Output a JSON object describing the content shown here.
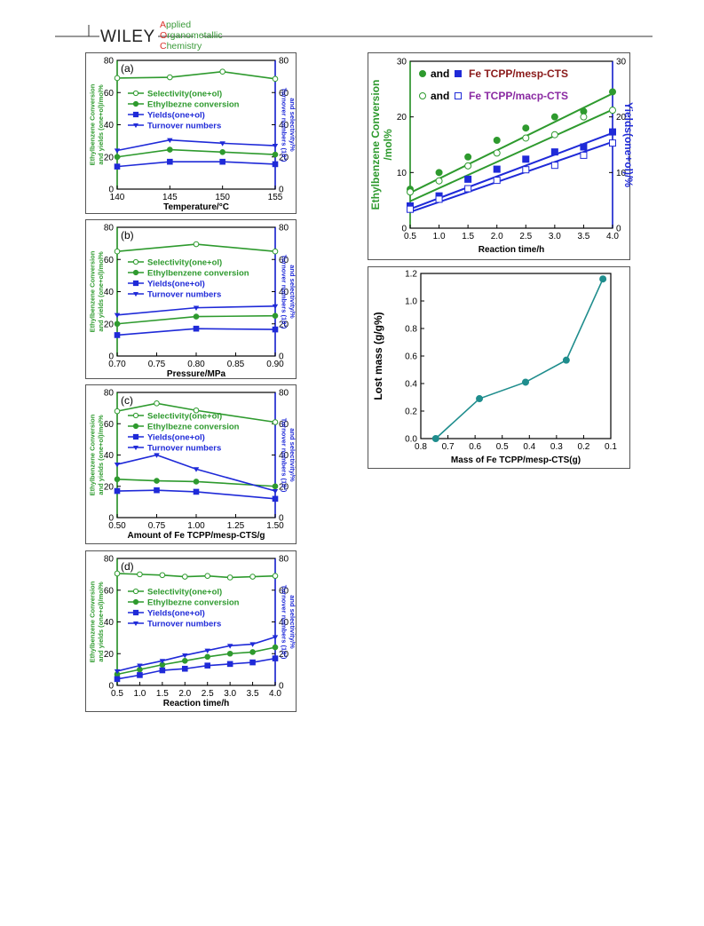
{
  "header": {
    "publisher": "WILEY",
    "journal_lines": [
      "Applied",
      "Organometallic",
      "Chemistry"
    ],
    "journal_initials": [
      "A",
      "O",
      "C"
    ],
    "journal_rest": [
      "pplied",
      "rganometallic",
      "hemistry"
    ],
    "colors": {
      "initial": "#d9322b",
      "rest": "#3a9a3a"
    }
  },
  "colors": {
    "green": "#2e9a2e",
    "blue": "#1f2ad8",
    "teal": "#1f8d8d",
    "maroon": "#8a1a1a",
    "purple": "#8a2aa2"
  },
  "chart_data": [
    {
      "id": "a",
      "type": "line",
      "panel_label": "(a)",
      "xlabel": "Temperature/°C",
      "ylabel_left": [
        "Ethylbenzene Conversion",
        "and yields (one+ol)/mol%"
      ],
      "ylabel_right": [
        "Turnover numbers (10³)",
        "and selectivity/%"
      ],
      "xlim": [
        140,
        155
      ],
      "ylim": [
        0,
        80
      ],
      "y2lim": [
        0,
        80
      ],
      "xticks": [
        140,
        145,
        150,
        155
      ],
      "xtick_labels": [
        "140",
        "145",
        "150",
        "155"
      ],
      "yticks": [
        0,
        20,
        40,
        60,
        80
      ],
      "ytick_labels": [
        "0",
        "20",
        "40",
        "60",
        "80"
      ],
      "y2ticks": [
        0,
        20,
        40,
        60,
        80
      ],
      "y2tick_labels": [
        "0",
        "20",
        "40",
        "60",
        "80"
      ],
      "x": [
        140,
        145,
        150,
        155
      ],
      "series": [
        {
          "name": "Selectivity(one+ol)",
          "values": [
            69,
            69.5,
            73,
            68.5
          ],
          "color": "#2e9a2e",
          "marker": "open-circle"
        },
        {
          "name": "Ethylbezne conversion",
          "values": [
            20,
            24.5,
            23,
            21.5
          ],
          "color": "#2e9a2e",
          "marker": "circle"
        },
        {
          "name": "Yields(one+ol)",
          "values": [
            14,
            17,
            17,
            15.5
          ],
          "color": "#1f2ad8",
          "marker": "square"
        },
        {
          "name": "Turnover numbers",
          "values": [
            24,
            30.5,
            28.5,
            27
          ],
          "color": "#1f2ad8",
          "marker": "down-triangle"
        }
      ]
    },
    {
      "id": "b",
      "type": "line",
      "panel_label": "(b)",
      "xlabel": "Pressure/MPa",
      "ylabel_left": [
        "Ethylbenzene Conversion",
        "and yields (one+ol)/mol%"
      ],
      "ylabel_right": [
        "Turnover numbers (10³)",
        "and selectivity/%"
      ],
      "xlim": [
        0.7,
        0.9
      ],
      "ylim": [
        0,
        80
      ],
      "y2lim": [
        0,
        80
      ],
      "xticks": [
        0.7,
        0.75,
        0.8,
        0.85,
        0.9
      ],
      "xtick_labels": [
        "0.70",
        "0.75",
        "0.80",
        "0.85",
        "0.90"
      ],
      "yticks": [
        0,
        20,
        40,
        60,
        80
      ],
      "ytick_labels": [
        "0",
        "20",
        "40",
        "60",
        "80"
      ],
      "y2ticks": [
        0,
        20,
        40,
        60,
        80
      ],
      "y2tick_labels": [
        "0",
        "20",
        "40",
        "60",
        "80"
      ],
      "x": [
        0.7,
        0.8,
        0.9
      ],
      "series": [
        {
          "name": "Selectivity(one+ol)",
          "values": [
            65,
            69.5,
            65
          ],
          "color": "#2e9a2e",
          "marker": "open-circle"
        },
        {
          "name": "Ethylbenzene conversion",
          "values": [
            20,
            24.5,
            25
          ],
          "color": "#2e9a2e",
          "marker": "circle"
        },
        {
          "name": "Yields(one+ol)",
          "values": [
            13,
            17,
            16.5
          ],
          "color": "#1f2ad8",
          "marker": "square"
        },
        {
          "name": "Turnover numbers",
          "values": [
            25.5,
            30,
            31
          ],
          "color": "#1f2ad8",
          "marker": "down-triangle"
        }
      ]
    },
    {
      "id": "c",
      "type": "line",
      "panel_label": "(c)",
      "xlabel": "Amount of Fe TCPP/mesp-CTS/g",
      "ylabel_left": [
        "Ethylbenzene Conversion",
        "and yields (one+ol)/mol%"
      ],
      "ylabel_right": [
        "Turnover numbers (10³)",
        "and selectivity/%"
      ],
      "xlim": [
        0.5,
        1.5
      ],
      "ylim": [
        0,
        80
      ],
      "y2lim": [
        0,
        80
      ],
      "xticks": [
        0.5,
        0.75,
        1.0,
        1.25,
        1.5
      ],
      "xtick_labels": [
        "0.50",
        "0.75",
        "1.00",
        "1.25",
        "1.50"
      ],
      "yticks": [
        0,
        20,
        40,
        60,
        80
      ],
      "ytick_labels": [
        "0",
        "20",
        "40",
        "60",
        "80"
      ],
      "y2ticks": [
        0,
        20,
        40,
        60,
        80
      ],
      "y2tick_labels": [
        "0",
        "20",
        "40",
        "60",
        "80"
      ],
      "x": [
        0.5,
        0.75,
        1.0,
        1.5
      ],
      "series": [
        {
          "name": "Selectivity(one+ol)",
          "values": [
            68,
            73,
            68.5,
            61
          ],
          "color": "#2e9a2e",
          "marker": "open-circle"
        },
        {
          "name": "Ethylbezne conversion",
          "values": [
            24.5,
            23.5,
            23,
            20
          ],
          "color": "#2e9a2e",
          "marker": "circle"
        },
        {
          "name": "Yields(one+ol)",
          "values": [
            17,
            17.5,
            16.5,
            12
          ],
          "color": "#1f2ad8",
          "marker": "square"
        },
        {
          "name": "Turnover numbers",
          "values": [
            34,
            40,
            31,
            17
          ],
          "color": "#1f2ad8",
          "marker": "down-triangle"
        }
      ]
    },
    {
      "id": "d",
      "type": "line",
      "panel_label": "(d)",
      "xlabel": "Reaction time/h",
      "ylabel_left": [
        "Ethylbenzene Conversion",
        "and yields (one+ol)/mol%"
      ],
      "ylabel_right": [
        "Turnover numbers (10³)",
        "and selectivity/%"
      ],
      "xlim": [
        0.5,
        4.0
      ],
      "ylim": [
        0,
        80
      ],
      "y2lim": [
        0,
        80
      ],
      "xticks": [
        0.5,
        1.0,
        1.5,
        2.0,
        2.5,
        3.0,
        3.5,
        4.0
      ],
      "xtick_labels": [
        "0.5",
        "1.0",
        "1.5",
        "2.0",
        "2.5",
        "3.0",
        "3.5",
        "4.0"
      ],
      "yticks": [
        0,
        20,
        40,
        60,
        80
      ],
      "ytick_labels": [
        "0",
        "20",
        "40",
        "60",
        "80"
      ],
      "y2ticks": [
        0,
        20,
        40,
        60,
        80
      ],
      "y2tick_labels": [
        "0",
        "20",
        "40",
        "60",
        "80"
      ],
      "x": [
        0.5,
        1.0,
        1.5,
        2.0,
        2.5,
        3.0,
        3.5,
        4.0
      ],
      "series": [
        {
          "name": "Selectivity(one+ol)",
          "values": [
            70.5,
            70,
            69.5,
            68.5,
            69,
            68,
            68.5,
            69
          ],
          "color": "#2e9a2e",
          "marker": "open-circle"
        },
        {
          "name": "Ethylbezne conversion",
          "values": [
            7,
            10,
            13,
            15.5,
            18,
            20,
            21,
            24
          ],
          "color": "#2e9a2e",
          "marker": "circle"
        },
        {
          "name": "Yields(one+ol)",
          "values": [
            4,
            6.5,
            9.5,
            10.5,
            12.5,
            13.5,
            14.5,
            17
          ],
          "color": "#1f2ad8",
          "marker": "square"
        },
        {
          "name": "Turnover numbers",
          "values": [
            9,
            12.5,
            15.5,
            19,
            22,
            25,
            26,
            30.5
          ],
          "color": "#1f2ad8",
          "marker": "down-triangle"
        }
      ]
    },
    {
      "id": "e",
      "type": "scatter",
      "xlabel": "Reaction time/h",
      "ylabel_left": [
        "Ethylbenzene Conversion",
        "/mol%"
      ],
      "ylabel_right": [
        "Yields(one+ol)/%"
      ],
      "xlim": [
        0.5,
        4.0
      ],
      "ylim": [
        0,
        30
      ],
      "y2lim": [
        0,
        30
      ],
      "xticks": [
        0.5,
        1.0,
        1.5,
        2.0,
        2.5,
        3.0,
        3.5,
        4.0
      ],
      "xtick_labels": [
        "0.5",
        "1.0",
        "1.5",
        "2.0",
        "2.5",
        "3.0",
        "3.5",
        "4.0"
      ],
      "yticks": [
        0,
        10,
        20,
        30
      ],
      "ytick_labels": [
        "0",
        "10",
        "20",
        "30"
      ],
      "y2ticks": [
        0,
        10,
        20,
        30
      ],
      "y2tick_labels": [
        "0",
        "10",
        "20",
        "30"
      ],
      "x": [
        0.5,
        1.0,
        1.5,
        2.0,
        2.5,
        3.0,
        3.5,
        4.0
      ],
      "legend": [
        {
          "prefix": "and",
          "label": "Fe TCPP/mesp-CTS",
          "color": "#8a1a1a",
          "markers": [
            "circle-green",
            "square-blue"
          ]
        },
        {
          "prefix": "and",
          "label": "Fe TCPP/macp-CTS",
          "color": "#8a2aa2",
          "markers": [
            "open-circle-green",
            "open-square-blue"
          ]
        }
      ],
      "series": [
        {
          "name": "mesp conversion",
          "values": [
            7,
            10,
            12.8,
            15.8,
            18,
            20,
            21,
            24.5
          ],
          "color": "#2e9a2e",
          "marker": "circle",
          "fit": [
            3.8,
            5.1
          ]
        },
        {
          "name": "macp conversion",
          "values": [
            6.5,
            8.5,
            11.2,
            13.5,
            16.2,
            16.8,
            20,
            21.2
          ],
          "color": "#2e9a2e",
          "marker": "open-circle",
          "fit": [
            2.5,
            4.7
          ]
        },
        {
          "name": "mesp yields",
          "values": [
            4,
            5.8,
            8.8,
            10.6,
            12.4,
            13.7,
            14.6,
            17.3
          ],
          "color": "#1f2ad8",
          "marker": "square",
          "fit": [
            1.5,
            3.9
          ]
        },
        {
          "name": "macp yields",
          "values": [
            3.4,
            5.2,
            7.1,
            8.6,
            10.5,
            11.3,
            13.1,
            15.3
          ],
          "color": "#1f2ad8",
          "marker": "open-square",
          "fit": [
            1.1,
            3.6
          ]
        }
      ]
    },
    {
      "id": "f",
      "type": "line",
      "xlabel": "Mass of Fe TCPP/mesp-CTS(g)",
      "ylabel_left": [
        "Lost mass (g/g%)"
      ],
      "xlim": [
        0.8,
        0.1
      ],
      "ylim": [
        0,
        1.2
      ],
      "x_reversed": true,
      "xticks": [
        0.8,
        0.7,
        0.6,
        0.5,
        0.4,
        0.3,
        0.2,
        0.1
      ],
      "xtick_labels": [
        "0.8",
        "0.7",
        "0.6",
        "0.5",
        "0.4",
        "0.3",
        "0.2",
        "0.1"
      ],
      "yticks": [
        0,
        0.2,
        0.4,
        0.6,
        0.8,
        1.0,
        1.2
      ],
      "ytick_labels": [
        "0.0",
        "0.2",
        "0.4",
        "0.6",
        "0.8",
        "1.0",
        "1.2"
      ],
      "x": [
        0.745,
        0.584,
        0.414,
        0.264,
        0.129
      ],
      "series": [
        {
          "name": "Lost mass",
          "values": [
            0.0,
            0.29,
            0.41,
            0.57,
            1.16
          ],
          "color": "#1f8d8d",
          "marker": "circle"
        }
      ]
    }
  ]
}
